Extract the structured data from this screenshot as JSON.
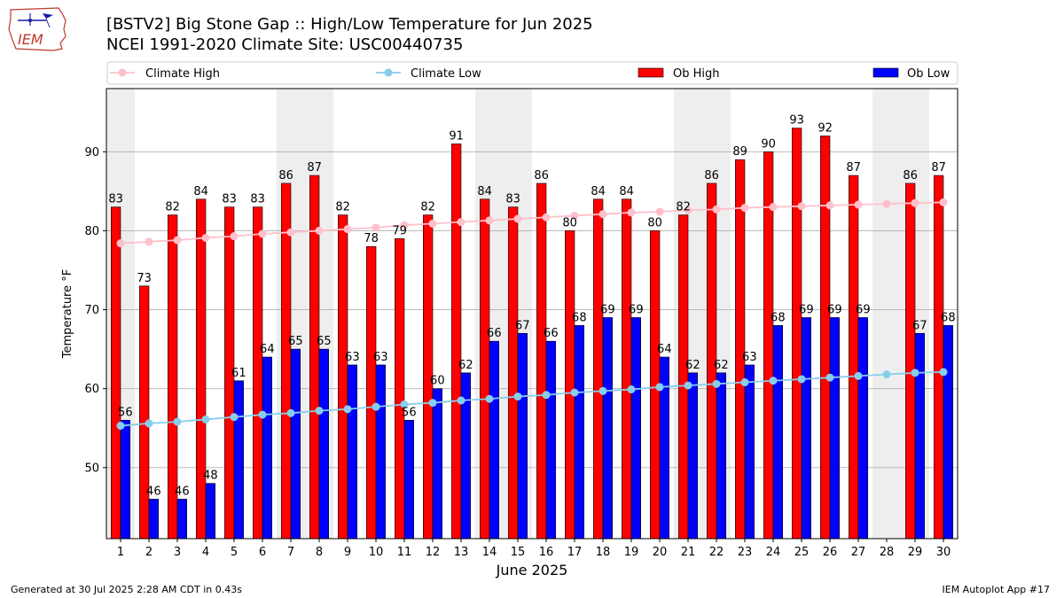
{
  "title_line1": "[BSTV2] Big Stone Gap :: High/Low Temperature for Jun 2025",
  "title_line2": "NCEI 1991-2020 Climate Site: USC00440735",
  "footer_left": "Generated at 30 Jul 2025 2:28 AM CDT in 0.43s",
  "footer_right": "IEM Autoplot App #17",
  "logo_text": "IEM",
  "chart_data": {
    "type": "bar",
    "xlabel": "June 2025",
    "ylabel": "Temperature °F",
    "ylim": [
      41,
      98
    ],
    "yticks": [
      50,
      60,
      70,
      80,
      90
    ],
    "grid": "horizontal",
    "legend_placement": "top",
    "categories": [
      1,
      2,
      3,
      4,
      5,
      6,
      7,
      8,
      9,
      10,
      11,
      12,
      13,
      14,
      15,
      16,
      17,
      18,
      19,
      20,
      21,
      22,
      23,
      24,
      25,
      26,
      27,
      28,
      29,
      30
    ],
    "weekend_shaded_days": [
      1,
      7,
      8,
      14,
      15,
      21,
      22,
      28,
      29
    ],
    "series": [
      {
        "name": "Climate High",
        "kind": "line",
        "color": "#ffc0cb",
        "values": [
          78.4,
          78.6,
          78.8,
          79.1,
          79.3,
          79.6,
          79.8,
          80.0,
          80.2,
          80.4,
          80.7,
          80.9,
          81.1,
          81.3,
          81.5,
          81.7,
          81.9,
          82.1,
          82.3,
          82.4,
          82.6,
          82.7,
          82.9,
          83.0,
          83.1,
          83.2,
          83.3,
          83.4,
          83.5,
          83.6
        ]
      },
      {
        "name": "Climate Low",
        "kind": "line",
        "color": "#87ceeb",
        "values": [
          55.3,
          55.6,
          55.8,
          56.1,
          56.4,
          56.7,
          56.9,
          57.2,
          57.4,
          57.7,
          58.0,
          58.2,
          58.5,
          58.7,
          59.0,
          59.2,
          59.5,
          59.7,
          59.9,
          60.2,
          60.4,
          60.6,
          60.8,
          61.0,
          61.2,
          61.4,
          61.6,
          61.8,
          62.0,
          62.1
        ]
      },
      {
        "name": "Ob High",
        "kind": "bar",
        "color": "#ff0000",
        "values": [
          83,
          73,
          82,
          84,
          83,
          83,
          86,
          87,
          82,
          78,
          79,
          82,
          91,
          84,
          83,
          86,
          80,
          84,
          84,
          80,
          82,
          86,
          89,
          90,
          93,
          92,
          87,
          null,
          86,
          87
        ]
      },
      {
        "name": "Ob Low",
        "kind": "bar",
        "color": "#0000ff",
        "values": [
          56,
          46,
          46,
          48,
          61,
          64,
          65,
          65,
          63,
          63,
          56,
          60,
          62,
          66,
          67,
          66,
          68,
          69,
          69,
          64,
          62,
          62,
          63,
          68,
          69,
          69,
          69,
          null,
          67,
          68
        ]
      }
    ]
  }
}
